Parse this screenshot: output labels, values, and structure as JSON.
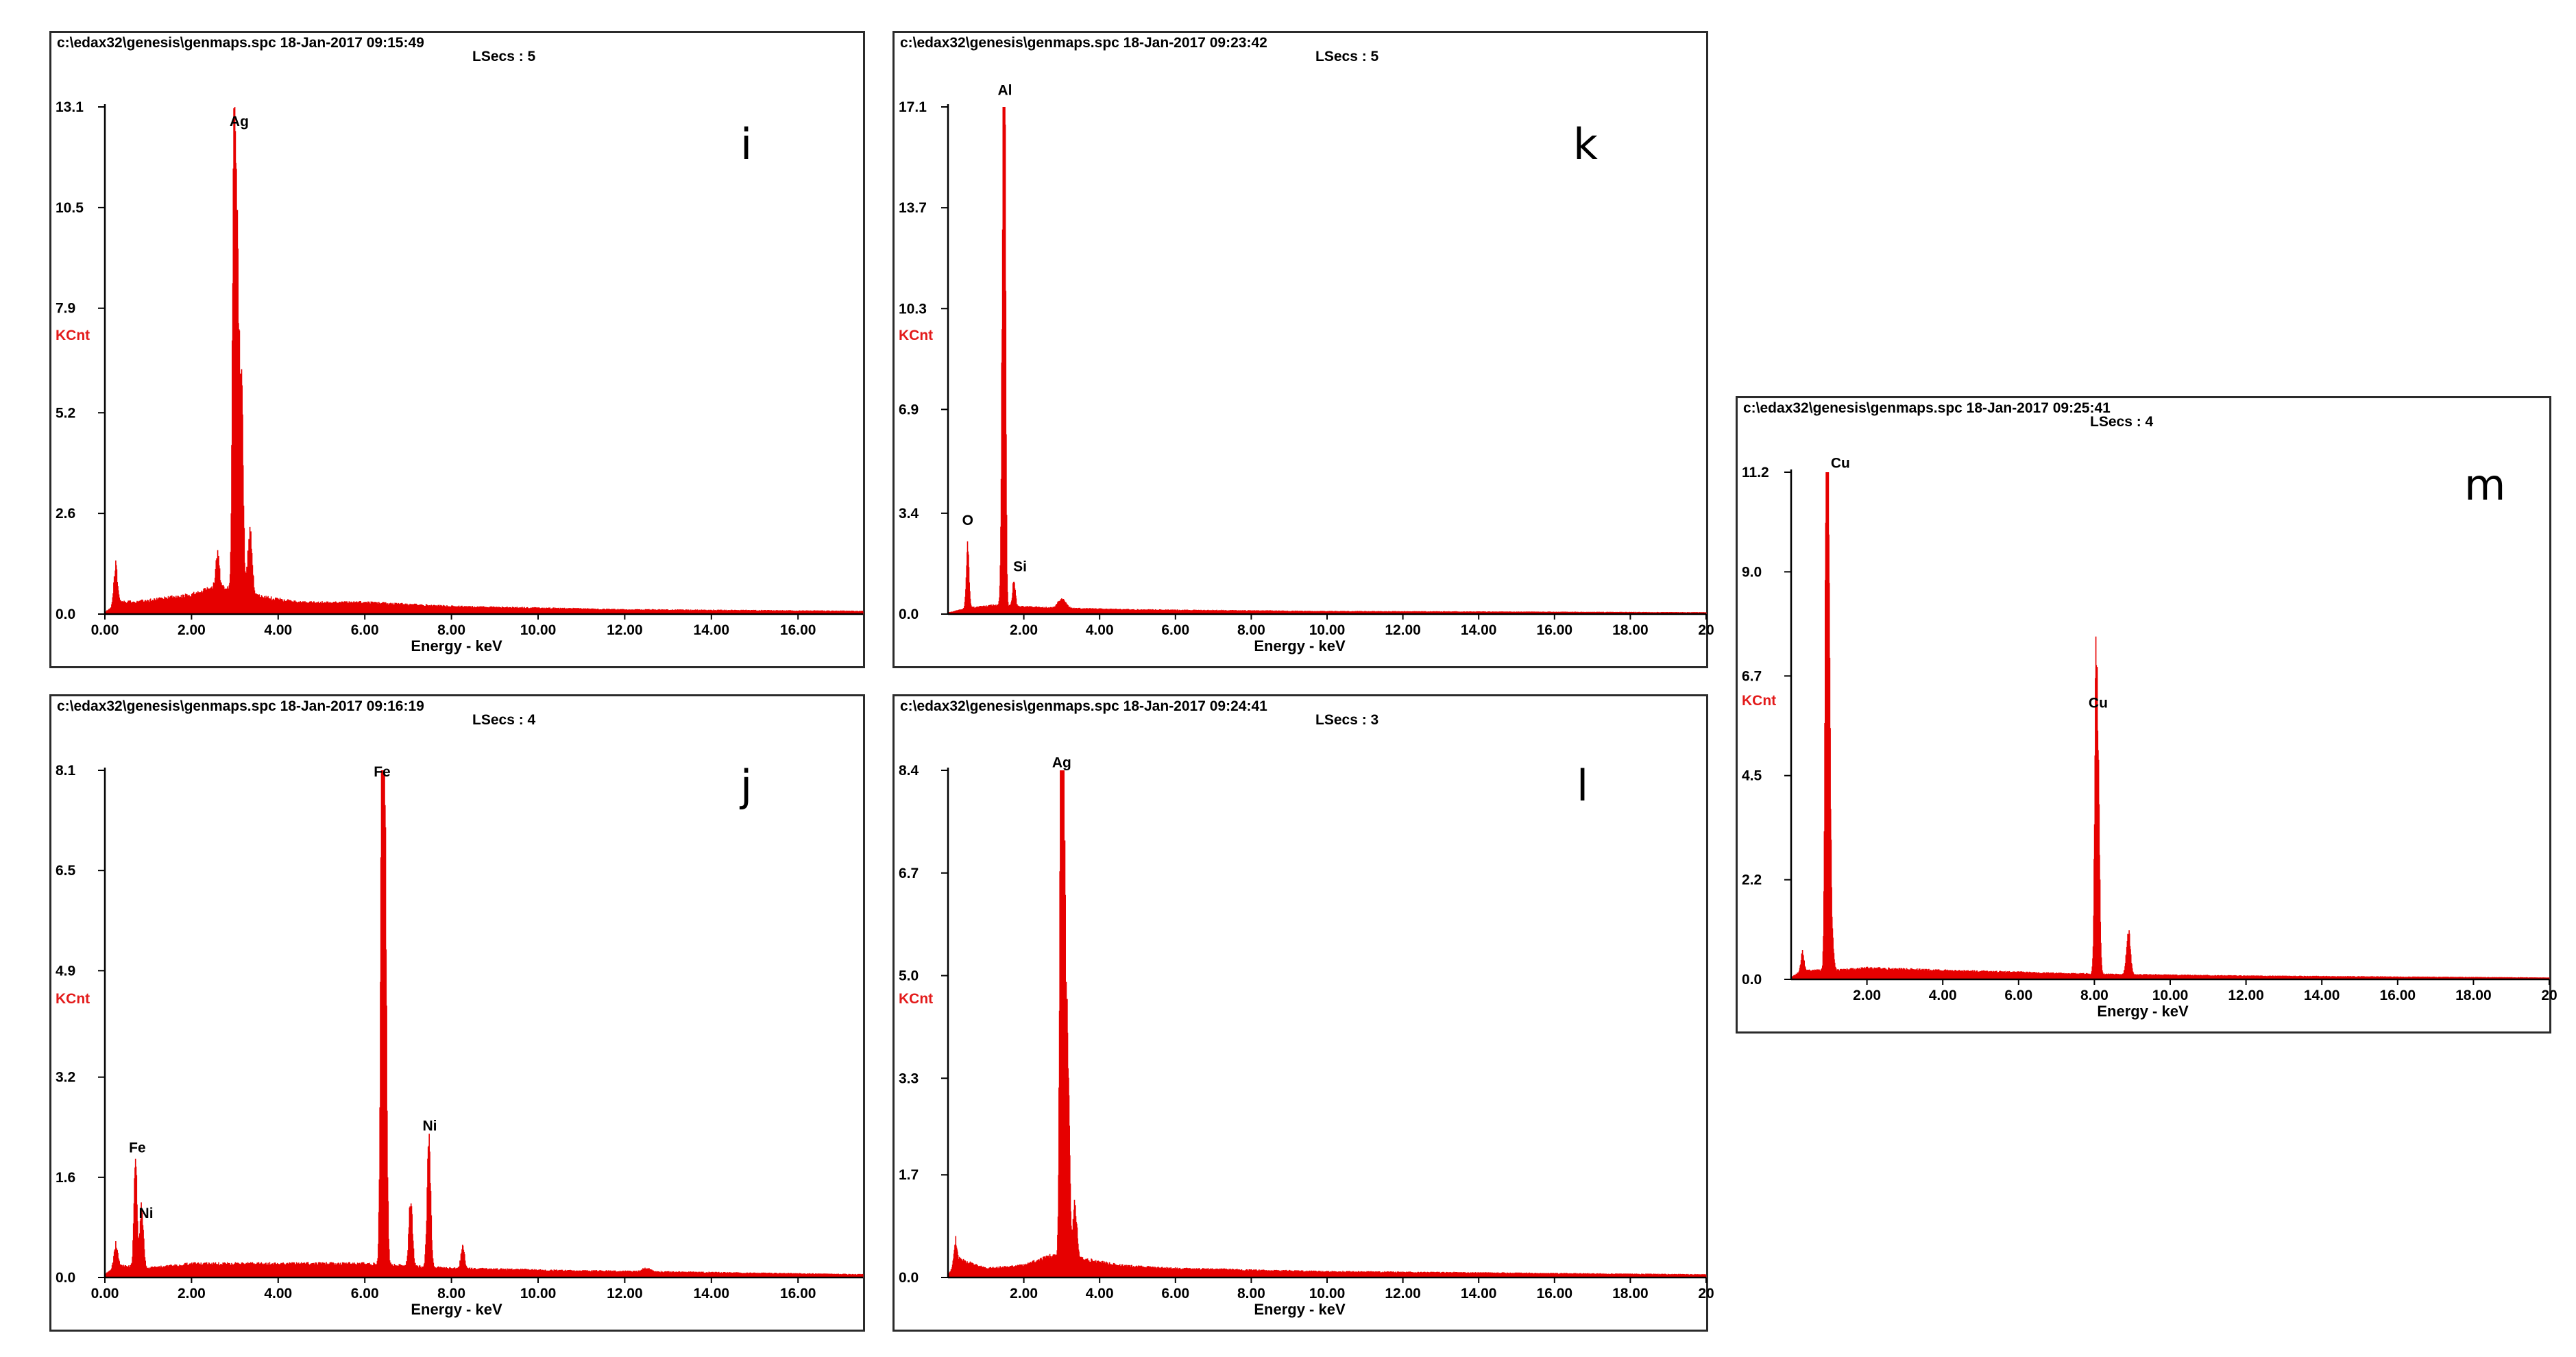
{
  "colors": {
    "spectrum": "#e60000",
    "axis": "#000000",
    "kcnt": "#e31a1a"
  },
  "chart_data": [
    {
      "id": "i",
      "type": "area",
      "panel_label": "i",
      "header": "c:\\edax32\\genesis\\genmaps.spc  18-Jan-2017 09:15:49",
      "lsecs": "LSecs :  5",
      "ylabel": "KCnt",
      "xlabel": "Energy - keV",
      "ylim": [
        0,
        13.1
      ],
      "xlim": [
        0,
        17.5
      ],
      "yticks": [
        0.0,
        2.6,
        5.2,
        7.9,
        10.5,
        13.1
      ],
      "ytick_labels": [
        "0.0",
        "2.6",
        "5.2",
        "7.9",
        "10.5",
        "13.1"
      ],
      "xticks": [
        0,
        2,
        4,
        6,
        8,
        10,
        12,
        14,
        16
      ],
      "xtick_labels": [
        "0.00",
        "2.00",
        "4.00",
        "6.00",
        "8.00",
        "10.00",
        "12.00",
        "14.00",
        "16.00"
      ],
      "baseline": [
        [
          0.0,
          0.05
        ],
        [
          0.3,
          0.3
        ],
        [
          1.0,
          0.35
        ],
        [
          2.0,
          0.5
        ],
        [
          2.6,
          0.7
        ],
        [
          3.6,
          0.45
        ],
        [
          4.5,
          0.3
        ],
        [
          6.0,
          0.3
        ],
        [
          8.0,
          0.2
        ],
        [
          12.0,
          0.12
        ],
        [
          17.5,
          0.08
        ]
      ],
      "peaks": [
        {
          "x": 0.25,
          "y": 1.0,
          "w": 0.04
        },
        {
          "x": 2.6,
          "y": 0.9,
          "w": 0.04
        },
        {
          "x": 2.98,
          "y": 11.7,
          "w": 0.035
        },
        {
          "x": 3.05,
          "y": 7.8,
          "w": 0.04
        },
        {
          "x": 3.15,
          "y": 5.7,
          "w": 0.04
        },
        {
          "x": 3.35,
          "y": 1.6,
          "w": 0.05
        }
      ],
      "annotations": [
        {
          "text": "Ag",
          "x": 3.1,
          "y": 12.6
        }
      ]
    },
    {
      "id": "k",
      "type": "area",
      "panel_label": "k",
      "header": "c:\\edax32\\genesis\\genmaps.spc  18-Jan-2017 09:23:42",
      "lsecs": "LSecs :  5",
      "ylabel": "KCnt",
      "xlabel": "Energy - keV",
      "ylim": [
        0,
        17.1
      ],
      "xlim": [
        0,
        20
      ],
      "yticks": [
        0.0,
        3.4,
        6.9,
        10.3,
        13.7,
        17.1
      ],
      "ytick_labels": [
        "0.0",
        "3.4",
        "6.9",
        "10.3",
        "13.7",
        "17.1"
      ],
      "xticks": [
        2,
        4,
        6,
        8,
        10,
        12,
        14,
        16,
        18,
        20
      ],
      "xtick_labels": [
        "2.00",
        "4.00",
        "6.00",
        "8.00",
        "10.00",
        "12.00",
        "14.00",
        "16.00",
        "18.00",
        "20"
      ],
      "baseline": [
        [
          0.0,
          0.05
        ],
        [
          0.5,
          0.2
        ],
        [
          1.2,
          0.3
        ],
        [
          2.0,
          0.25
        ],
        [
          3.0,
          0.2
        ],
        [
          5.0,
          0.15
        ],
        [
          10.0,
          0.1
        ],
        [
          20.0,
          0.06
        ]
      ],
      "peaks": [
        {
          "x": 0.52,
          "y": 2.2,
          "w": 0.035
        },
        {
          "x": 1.49,
          "y": 16.7,
          "w": 0.03
        },
        {
          "x": 1.45,
          "y": 10.5,
          "w": 0.035
        },
        {
          "x": 1.74,
          "y": 0.9,
          "w": 0.035
        },
        {
          "x": 3.0,
          "y": 0.3,
          "w": 0.1
        }
      ],
      "annotations": [
        {
          "text": "Al",
          "x": 1.5,
          "y": 17.5
        },
        {
          "text": "O",
          "x": 0.52,
          "y": 3.0
        },
        {
          "text": "Si",
          "x": 1.9,
          "y": 1.45
        }
      ]
    },
    {
      "id": "j",
      "type": "area",
      "panel_label": "j",
      "header": "c:\\edax32\\genesis\\genmaps.spc  18-Jan-2017 09:16:19",
      "lsecs": "LSecs :  4",
      "ylabel": "KCnt",
      "xlabel": "Energy - keV",
      "ylim": [
        0,
        8.1
      ],
      "xlim": [
        0,
        17.5
      ],
      "yticks": [
        0.0,
        1.6,
        3.2,
        4.9,
        6.5,
        8.1
      ],
      "ytick_labels": [
        "0.0",
        "1.6",
        "3.2",
        "4.9",
        "6.5",
        "8.1"
      ],
      "xticks": [
        0,
        2,
        4,
        6,
        8,
        10,
        12,
        14,
        16
      ],
      "xtick_labels": [
        "0.00",
        "2.00",
        "4.00",
        "6.00",
        "8.00",
        "10.00",
        "12.00",
        "14.00",
        "16.00"
      ],
      "baseline": [
        [
          0.0,
          0.05
        ],
        [
          0.3,
          0.2
        ],
        [
          1.0,
          0.15
        ],
        [
          2.0,
          0.22
        ],
        [
          4.0,
          0.22
        ],
        [
          6.0,
          0.22
        ],
        [
          8.0,
          0.15
        ],
        [
          10.0,
          0.12
        ],
        [
          17.5,
          0.05
        ]
      ],
      "peaks": [
        {
          "x": 0.25,
          "y": 0.35,
          "w": 0.04
        },
        {
          "x": 0.71,
          "y": 1.75,
          "w": 0.035
        },
        {
          "x": 0.85,
          "y": 0.95,
          "w": 0.04
        },
        {
          "x": 6.4,
          "y": 7.8,
          "w": 0.035
        },
        {
          "x": 6.46,
          "y": 6.6,
          "w": 0.04
        },
        {
          "x": 7.06,
          "y": 1.05,
          "w": 0.04
        },
        {
          "x": 7.48,
          "y": 2.0,
          "w": 0.04
        },
        {
          "x": 8.26,
          "y": 0.35,
          "w": 0.04
        },
        {
          "x": 12.5,
          "y": 0.05,
          "w": 0.1
        }
      ],
      "annotations": [
        {
          "text": "Fe",
          "x": 6.4,
          "y": 8.0
        },
        {
          "text": "Fe",
          "x": 0.75,
          "y": 2.0
        },
        {
          "text": "Ni",
          "x": 0.95,
          "y": 0.95
        },
        {
          "text": "Ni",
          "x": 7.5,
          "y": 2.35
        }
      ]
    },
    {
      "id": "l",
      "type": "area",
      "panel_label": "l",
      "header": "c:\\edax32\\genesis\\genmaps.spc  18-Jan-2017 09:24:41",
      "lsecs": "LSecs :  3",
      "ylabel": "KCnt",
      "xlabel": "Energy - keV",
      "ylim": [
        0,
        8.4
      ],
      "xlim": [
        0,
        20
      ],
      "yticks": [
        0.0,
        1.7,
        3.3,
        5.0,
        6.7,
        8.4
      ],
      "ytick_labels": [
        "0.0",
        "1.7",
        "3.3",
        "5.0",
        "6.7",
        "8.4"
      ],
      "xticks": [
        2,
        4,
        6,
        8,
        10,
        12,
        14,
        16,
        18,
        20
      ],
      "xtick_labels": [
        "2.00",
        "4.00",
        "6.00",
        "8.00",
        "10.00",
        "12.00",
        "14.00",
        "16.00",
        "18.00",
        "20"
      ],
      "baseline": [
        [
          0.0,
          0.05
        ],
        [
          0.3,
          0.3
        ],
        [
          1.0,
          0.15
        ],
        [
          2.0,
          0.2
        ],
        [
          2.7,
          0.35
        ],
        [
          3.6,
          0.3
        ],
        [
          4.5,
          0.2
        ],
        [
          6.0,
          0.15
        ],
        [
          10.0,
          0.1
        ],
        [
          20.0,
          0.05
        ]
      ],
      "peaks": [
        {
          "x": 0.2,
          "y": 0.4,
          "w": 0.04
        },
        {
          "x": 2.98,
          "y": 8.1,
          "w": 0.035
        },
        {
          "x": 3.05,
          "y": 6.8,
          "w": 0.04
        },
        {
          "x": 3.15,
          "y": 3.5,
          "w": 0.05
        },
        {
          "x": 3.35,
          "y": 0.9,
          "w": 0.05
        }
      ],
      "annotations": [
        {
          "text": "Ag",
          "x": 3.0,
          "y": 8.45
        }
      ]
    },
    {
      "id": "m",
      "type": "area",
      "panel_label": "m",
      "header": "c:\\edax32\\genesis\\genmaps.spc  18-Jan-2017 09:25:41",
      "lsecs": "LSecs :  4",
      "ylabel": "KCnt",
      "xlabel": "Energy - keV",
      "ylim": [
        0,
        11.2
      ],
      "xlim": [
        0,
        20
      ],
      "yticks": [
        0.0,
        2.2,
        4.5,
        6.7,
        9.0,
        11.2
      ],
      "ytick_labels": [
        "0.0",
        "2.2",
        "4.5",
        "6.7",
        "9.0",
        "11.2"
      ],
      "xticks": [
        2,
        4,
        6,
        8,
        10,
        12,
        14,
        16,
        18,
        20
      ],
      "xtick_labels": [
        "2.00",
        "4.00",
        "6.00",
        "8.00",
        "10.00",
        "12.00",
        "14.00",
        "16.00",
        "18.00",
        "20"
      ],
      "baseline": [
        [
          0.0,
          0.05
        ],
        [
          0.3,
          0.2
        ],
        [
          1.2,
          0.2
        ],
        [
          2.0,
          0.25
        ],
        [
          4.0,
          0.2
        ],
        [
          8.0,
          0.12
        ],
        [
          12.0,
          0.08
        ],
        [
          20.0,
          0.04
        ]
      ],
      "peaks": [
        {
          "x": 0.3,
          "y": 0.4,
          "w": 0.04
        },
        {
          "x": 0.93,
          "y": 9.6,
          "w": 0.035
        },
        {
          "x": 0.98,
          "y": 8.2,
          "w": 0.04
        },
        {
          "x": 1.05,
          "y": 1.2,
          "w": 0.05
        },
        {
          "x": 8.04,
          "y": 5.6,
          "w": 0.035
        },
        {
          "x": 8.1,
          "y": 3.8,
          "w": 0.04
        },
        {
          "x": 8.9,
          "y": 0.95,
          "w": 0.05
        }
      ],
      "annotations": [
        {
          "text": "Cu",
          "x": 1.3,
          "y": 11.3
        },
        {
          "text": "Cu",
          "x": 8.1,
          "y": 6.0
        }
      ]
    }
  ]
}
